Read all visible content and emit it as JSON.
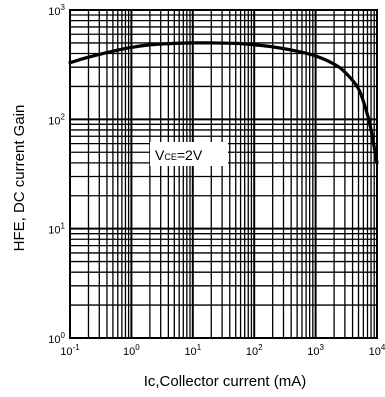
{
  "chart_data": {
    "type": "line",
    "x_scale": "log",
    "y_scale": "log",
    "xlim": [
      0.1,
      10000
    ],
    "ylim": [
      1,
      1000
    ],
    "grid": true,
    "xlabel": "Ic,Collector current  (mA)",
    "ylabel": "HFE, DC current Gain",
    "x_ticks": [
      {
        "base": "10",
        "exp": "-1"
      },
      {
        "base": "10",
        "exp": "0"
      },
      {
        "base": "10",
        "exp": "1"
      },
      {
        "base": "10",
        "exp": "2"
      },
      {
        "base": "10",
        "exp": "3"
      },
      {
        "base": "10",
        "exp": "4"
      }
    ],
    "y_ticks": [
      {
        "base": "10",
        "exp": "0"
      },
      {
        "base": "10",
        "exp": "1"
      },
      {
        "base": "10",
        "exp": "2"
      },
      {
        "base": "10",
        "exp": "3"
      }
    ],
    "annotation": {
      "main": "V",
      "sub": "CE",
      "rest": "=2V"
    },
    "series": [
      {
        "x": [
          0.1,
          0.2,
          0.5,
          1,
          2,
          5,
          10,
          20,
          50,
          100,
          200,
          500,
          1000,
          2000,
          3000,
          5000,
          7000,
          8000,
          10000
        ],
        "y": [
          330,
          370,
          420,
          455,
          480,
          495,
          500,
          500,
          495,
          480,
          460,
          420,
          380,
          320,
          270,
          190,
          110,
          80,
          40
        ]
      }
    ]
  }
}
